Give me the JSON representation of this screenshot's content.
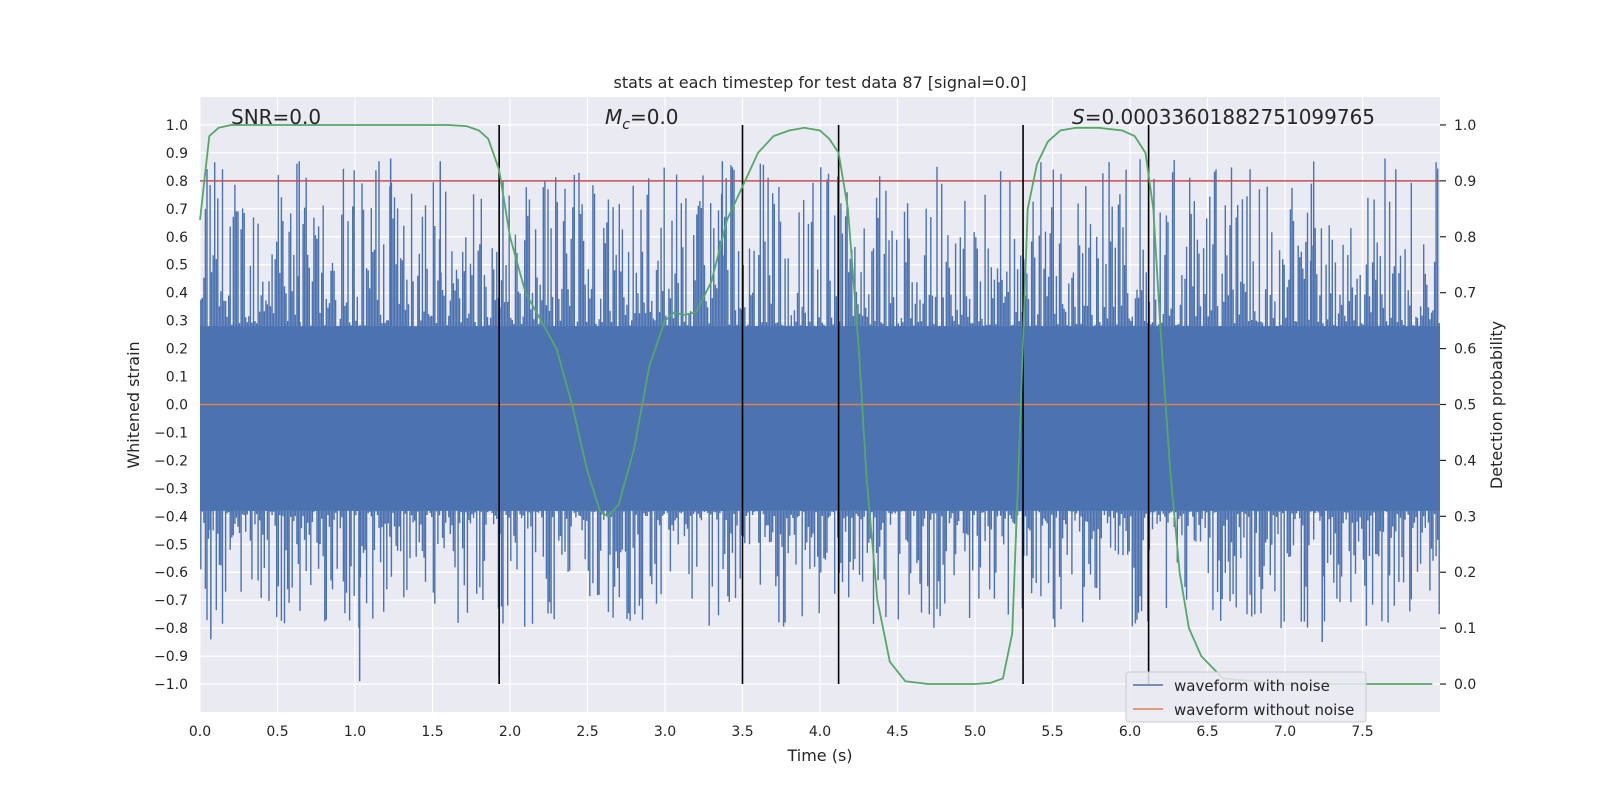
{
  "chart_data": {
    "type": "line",
    "title": "stats at each timestep for test data 87 [signal=0.0]",
    "xlabel": "Time (s)",
    "ylabel": "Whitened strain",
    "y2label": "Detection probability",
    "xlim": [
      0.0,
      8.0
    ],
    "ylim": [
      -1.1,
      1.1
    ],
    "y2lim": [
      -0.05,
      1.05
    ],
    "x_ticks": [
      0.0,
      0.5,
      1.0,
      1.5,
      2.0,
      2.5,
      3.0,
      3.5,
      4.0,
      4.5,
      5.0,
      5.5,
      6.0,
      6.5,
      7.0,
      7.5
    ],
    "x_tick_labels": [
      "0.0",
      "0.5",
      "1.0",
      "1.5",
      "2.0",
      "2.5",
      "3.0",
      "3.5",
      "4.0",
      "4.5",
      "5.0",
      "5.5",
      "6.0",
      "6.5",
      "7.0",
      "7.5"
    ],
    "y_ticks": [
      1.0,
      0.9,
      0.8,
      0.7,
      0.6,
      0.5,
      0.4,
      0.3,
      0.2,
      0.1,
      0.0,
      -0.1,
      -0.2,
      -0.3,
      -0.4,
      -0.5,
      -0.6,
      -0.7,
      -0.8,
      -0.9,
      -1.0
    ],
    "y_tick_labels": [
      "1.0",
      "0.9",
      "0.8",
      "0.7",
      "0.6",
      "0.5",
      "0.4",
      "0.3",
      "0.2",
      "0.1",
      "0.0",
      "−0.1",
      "−0.2",
      "−0.3",
      "−0.4",
      "−0.5",
      "−0.6",
      "−0.7",
      "−0.8",
      "−0.9",
      "−1.0"
    ],
    "y2_ticks": [
      1.0,
      0.9,
      0.8,
      0.7,
      0.6,
      0.5,
      0.4,
      0.3,
      0.2,
      0.1,
      0.0
    ],
    "y2_tick_labels": [
      "1.0",
      "0.9",
      "0.8",
      "0.7",
      "0.6",
      "0.5",
      "0.4",
      "0.3",
      "0.2",
      "0.1",
      "0.0"
    ],
    "grid": true,
    "annotations": {
      "snr": "SNR=0.0",
      "mc_symbol": "M",
      "mc_sub": "c",
      "mc_value": "=0.0",
      "s_symbol": "S",
      "s_value": "=0.0003360188275109976​5"
    },
    "threshold": {
      "value": 0.9,
      "axis": "y2",
      "color": "#c44e52"
    },
    "vertical_lines_x": [
      1.93,
      3.5,
      4.12,
      5.31,
      6.12
    ],
    "noise_waveform": {
      "name": "waveform with noise",
      "color": "#4c72b0",
      "samples": 800,
      "upper_envelope_max": 0.88,
      "lower_envelope_min": -1.0,
      "seed": 87,
      "spikes": [
        {
          "x": 1.03,
          "y": -0.99
        },
        {
          "x": 1.93,
          "y": -0.97
        },
        {
          "x": 0.07,
          "y": -0.84
        },
        {
          "x": 3.37,
          "y": 0.87
        },
        {
          "x": 1.23,
          "y": 0.88
        },
        {
          "x": 1.55,
          "y": 0.87
        },
        {
          "x": 0.64,
          "y": 0.87
        },
        {
          "x": 7.17,
          "y": 0.79
        },
        {
          "x": 7.24,
          "y": -0.85
        }
      ]
    },
    "clean_waveform": {
      "name": "waveform without noise",
      "color": "#dd8452",
      "x": [
        0.0,
        8.0
      ],
      "y": [
        0.0,
        0.0
      ]
    },
    "detection_probability": {
      "name": "detection probability",
      "color": "#55a868",
      "x": [
        0.0,
        0.06,
        0.12,
        0.2,
        0.4,
        0.8,
        1.2,
        1.6,
        1.72,
        1.8,
        1.86,
        1.93,
        2.0,
        2.1,
        2.2,
        2.3,
        2.4,
        2.5,
        2.58,
        2.63,
        2.7,
        2.8,
        2.9,
        3.0,
        3.06,
        3.12,
        3.2,
        3.3,
        3.4,
        3.5,
        3.6,
        3.7,
        3.8,
        3.9,
        4.0,
        4.06,
        4.12,
        4.18,
        4.25,
        4.3,
        4.37,
        4.45,
        4.55,
        4.7,
        5.0,
        5.1,
        5.18,
        5.24,
        5.28,
        5.34,
        5.4,
        5.47,
        5.55,
        5.65,
        5.8,
        5.95,
        6.03,
        6.1,
        6.15,
        6.2,
        6.26,
        6.32,
        6.38,
        6.46,
        6.6,
        7.0,
        7.5,
        7.95
      ],
      "y": [
        0.83,
        0.98,
        0.995,
        1.0,
        1.0,
        1.0,
        1.0,
        1.0,
        0.998,
        0.99,
        0.975,
        0.92,
        0.8,
        0.7,
        0.65,
        0.6,
        0.5,
        0.38,
        0.31,
        0.3,
        0.32,
        0.42,
        0.57,
        0.65,
        0.665,
        0.66,
        0.665,
        0.72,
        0.83,
        0.89,
        0.95,
        0.98,
        0.99,
        0.995,
        0.99,
        0.975,
        0.95,
        0.85,
        0.6,
        0.37,
        0.15,
        0.04,
        0.005,
        0.0,
        0.0,
        0.002,
        0.01,
        0.09,
        0.38,
        0.85,
        0.93,
        0.97,
        0.99,
        0.995,
        0.995,
        0.99,
        0.98,
        0.95,
        0.85,
        0.62,
        0.38,
        0.2,
        0.1,
        0.05,
        0.01,
        0.0,
        0.0,
        0.0
      ]
    },
    "legend": {
      "placement": "bottom-right",
      "entries": [
        {
          "label": "waveform with noise",
          "color": "#4c72b0"
        },
        {
          "label": "waveform without noise",
          "color": "#dd8452"
        }
      ]
    },
    "colors": {
      "background": "#eaeaf2",
      "grid": "#ffffff",
      "vline": "#000000"
    }
  }
}
